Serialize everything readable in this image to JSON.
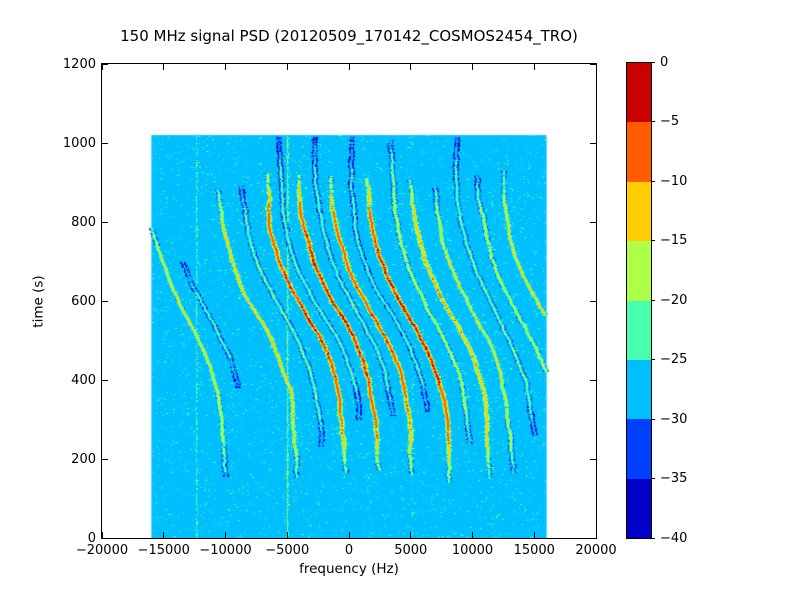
{
  "figure": {
    "background_color": "#ffffff",
    "axis_color": "#000000"
  },
  "chart_data": {
    "type": "heatmap",
    "subtype": "spectrogram-waterfall",
    "title": "150 MHz signal PSD (20120509_170142_COSMOS2454_TRO)",
    "xlabel": "frequency (Hz)",
    "ylabel": "time (s)",
    "xlim": [
      -20000,
      20000
    ],
    "ylim": [
      0,
      1200
    ],
    "grid": false,
    "xticks": {
      "values": [
        -20000,
        -15000,
        -10000,
        -5000,
        0,
        5000,
        10000,
        15000,
        20000
      ],
      "labels": [
        "−20000",
        "−15000",
        "−10000",
        "−5000",
        "0",
        "5000",
        "10000",
        "15000",
        "20000"
      ]
    },
    "yticks": {
      "values": [
        0,
        200,
        400,
        600,
        800,
        1000,
        1200
      ],
      "labels": [
        "0",
        "200",
        "400",
        "600",
        "800",
        "1000",
        "1200"
      ]
    },
    "colorbar": {
      "position": "right",
      "vmin": -40,
      "vmax": 0,
      "bin_size_db": 5,
      "tick_values": [
        0,
        -5,
        -10,
        -15,
        -20,
        -25,
        -30,
        -35,
        -40
      ],
      "tick_labels": [
        "0",
        "−5",
        "−10",
        "−15",
        "−20",
        "−25",
        "−30",
        "−35",
        "−40"
      ],
      "colors_top_to_bottom": [
        "#c80000",
        "#ff5c00",
        "#ffce00",
        "#aeff48",
        "#48ffaf",
        "#00bfff",
        "#0040ff",
        "#0000c8"
      ]
    },
    "data_extent": {
      "freq_hz": [
        -16000,
        16000
      ],
      "time_s": [
        0,
        1020
      ]
    },
    "background_level_db": -27,
    "noise_speckle": {
      "teal_dots": 2600,
      "teal_level_db": -23,
      "bright_dots": 220,
      "bright_level_db": -19
    },
    "interference_lines": [
      {
        "freq_hz": -12400,
        "level_db": -22.0,
        "duty": 0.62
      },
      {
        "freq_hz": -5060,
        "level_db": -20.5,
        "duty": 0.97
      },
      {
        "freq_hz": 5120,
        "level_db": -24.5,
        "duty": 0.4
      },
      {
        "freq_hz": 11600,
        "level_db": -24.0,
        "duty": 0.12
      }
    ],
    "doppler_model": {
      "description": "f(t) = center_hz - amplitude_hz * tanh((t - t_mid_s)/tau_s)",
      "t_mid_s": 570,
      "tau_s": 185,
      "amplitude_hz": 3350
    },
    "traces": [
      {
        "center_hz": -13200,
        "peak_db": -15,
        "t_start_s": 155,
        "t_end_s": 800
      },
      {
        "center_hz": -11600,
        "peak_db": -23,
        "t_start_s": 380,
        "t_end_s": 700
      },
      {
        "center_hz": -7500,
        "peak_db": -13,
        "t_start_s": 150,
        "t_end_s": 880
      },
      {
        "center_hz": -5500,
        "peak_db": -20,
        "t_start_s": 230,
        "t_end_s": 890
      },
      {
        "center_hz": -3500,
        "peak_db": -5,
        "t_start_s": 165,
        "t_end_s": 925
      },
      {
        "center_hz": -2200,
        "peak_db": -21,
        "t_start_s": 300,
        "t_end_s": 1015
      },
      {
        "center_hz": -800,
        "peak_db": -4,
        "t_start_s": 170,
        "t_end_s": 920
      },
      {
        "center_hz": 600,
        "peak_db": -21,
        "t_start_s": 310,
        "t_end_s": 1015
      },
      {
        "center_hz": 1800,
        "peak_db": -6,
        "t_start_s": 160,
        "t_end_s": 915
      },
      {
        "center_hz": 3400,
        "peak_db": -22,
        "t_start_s": 320,
        "t_end_s": 1015
      },
      {
        "center_hz": 4800,
        "peak_db": -4,
        "t_start_s": 140,
        "t_end_s": 910
      },
      {
        "center_hz": 6600,
        "peak_db": -17,
        "t_start_s": 240,
        "t_end_s": 1010
      },
      {
        "center_hz": 8100,
        "peak_db": -11,
        "t_start_s": 150,
        "t_end_s": 905
      },
      {
        "center_hz": 10000,
        "peak_db": -15,
        "t_start_s": 165,
        "t_end_s": 890
      },
      {
        "center_hz": 11900,
        "peak_db": -20,
        "t_start_s": 260,
        "t_end_s": 1015
      },
      {
        "center_hz": 13700,
        "peak_db": -17,
        "t_start_s": 230,
        "t_end_s": 920
      },
      {
        "center_hz": 15800,
        "peak_db": -14,
        "t_start_s": 380,
        "t_end_s": 930
      }
    ]
  }
}
